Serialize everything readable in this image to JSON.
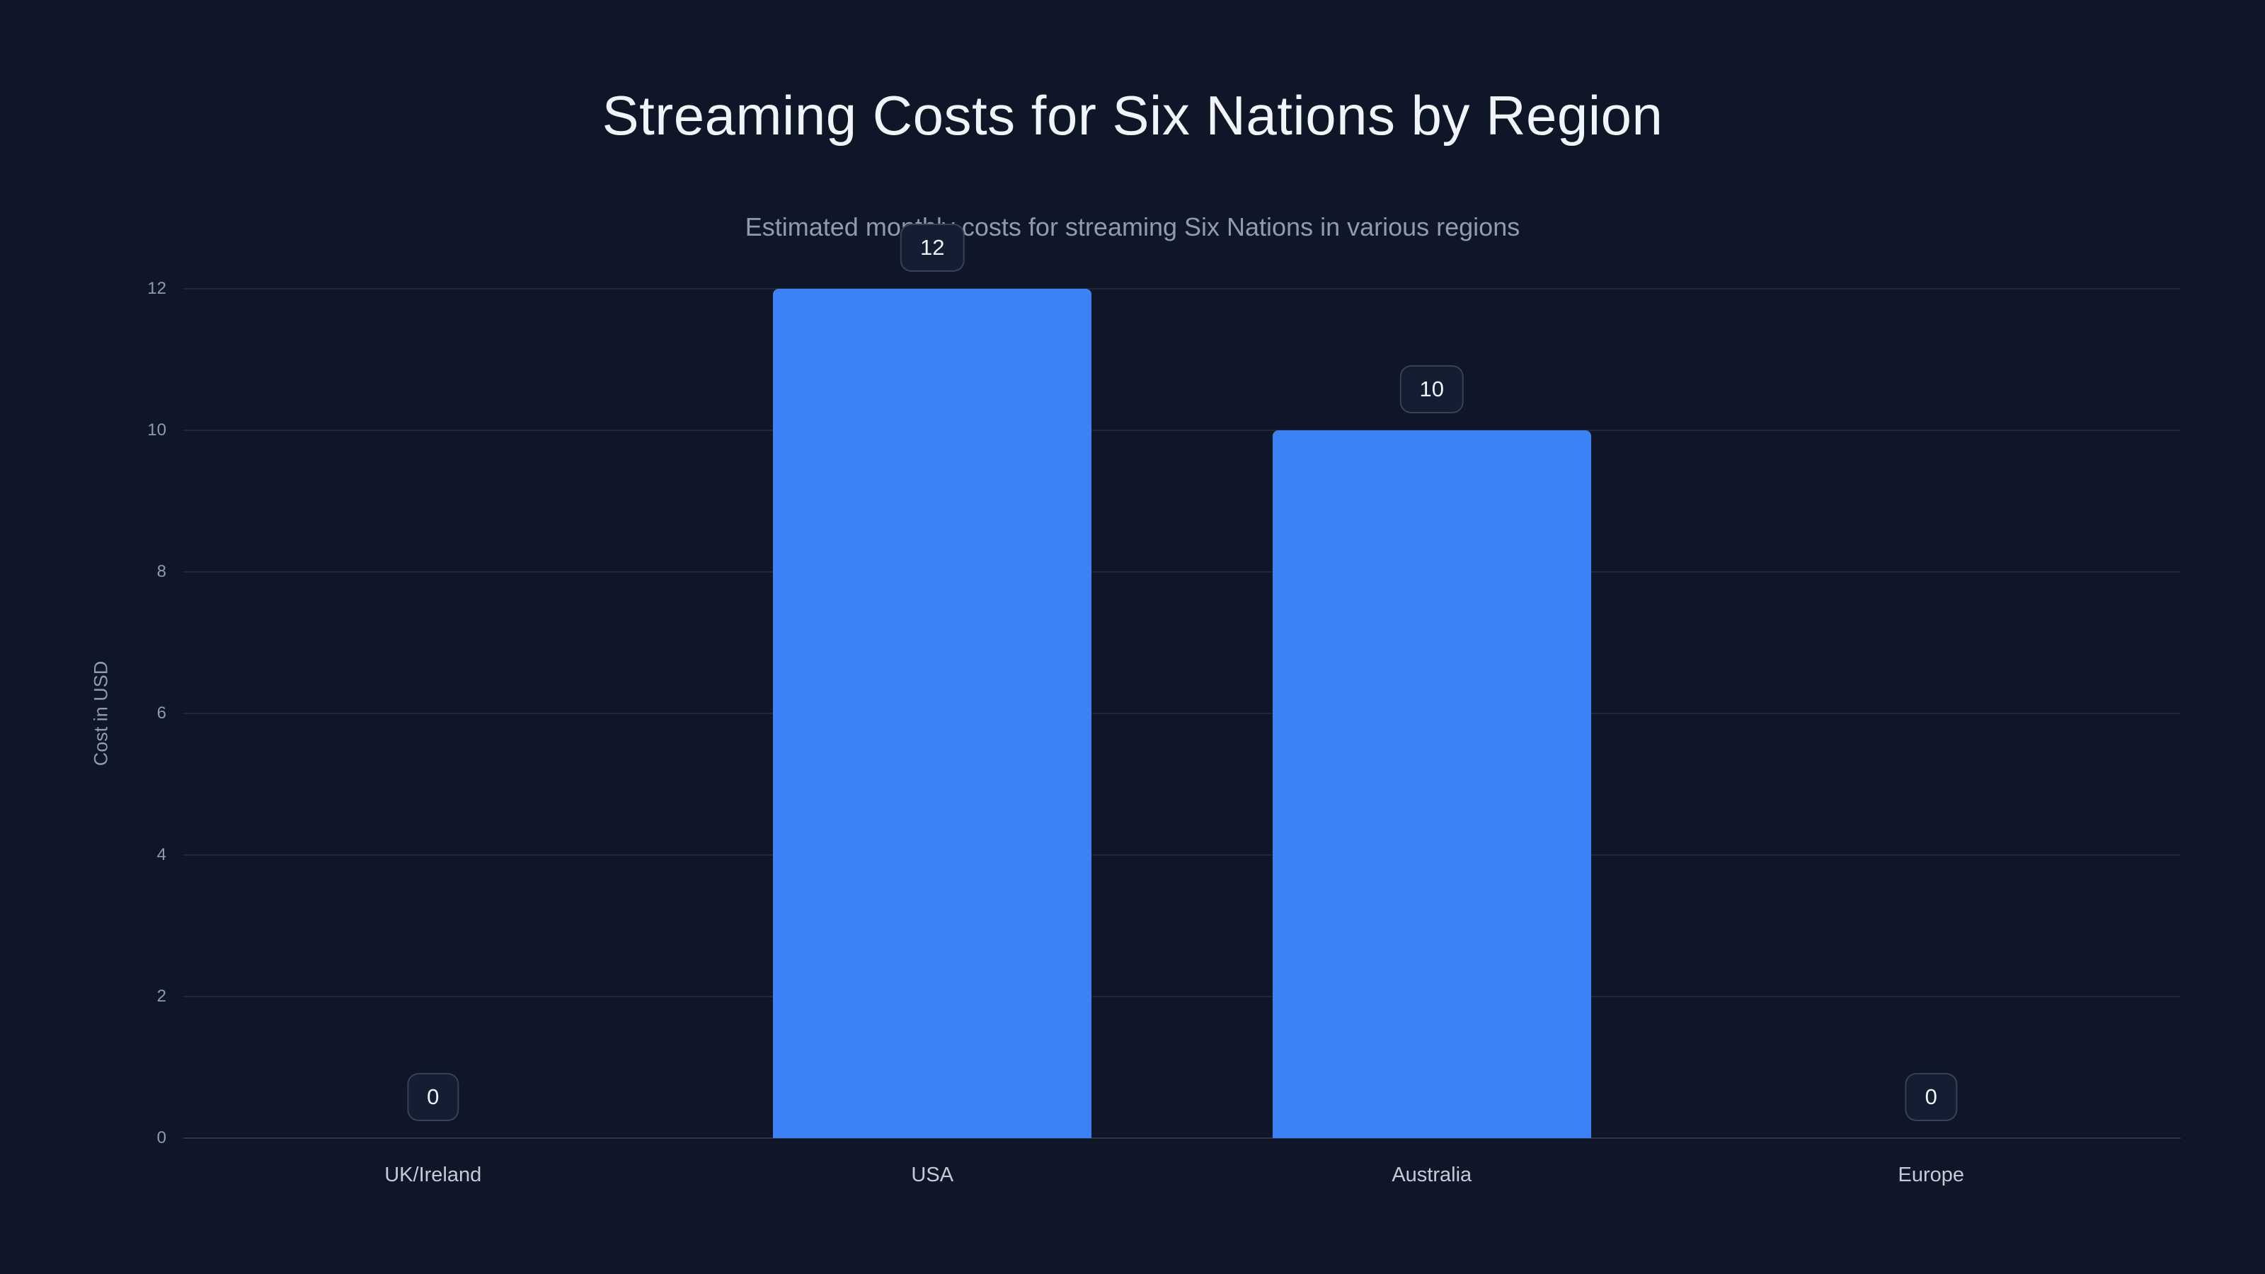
{
  "chart_data": {
    "type": "bar",
    "title": "Streaming Costs for Six Nations by Region",
    "subtitle": "Estimated monthly costs for streaming Six Nations in various regions",
    "categories": [
      "UK/Ireland",
      "USA",
      "Australia",
      "Europe"
    ],
    "values": [
      0,
      12,
      10,
      0
    ],
    "value_labels": [
      "0",
      "12",
      "10",
      "0"
    ],
    "xlabel": "",
    "ylabel": "Cost in USD",
    "ylim": [
      0,
      12
    ],
    "yticks": [
      0,
      2,
      4,
      6,
      8,
      10,
      12
    ],
    "grid": true,
    "legend_position": "none"
  },
  "colors": {
    "background": "#0e1627",
    "bar": "#3b82f6",
    "title_text": "#f1f5f9",
    "subtitle_text": "#8e9bb0",
    "tick_text": "#8e9bb0",
    "gridline": "rgba(148,163,184,0.13)",
    "badge_background": "#141e32",
    "badge_border": "rgba(148,163,184,0.28)"
  }
}
